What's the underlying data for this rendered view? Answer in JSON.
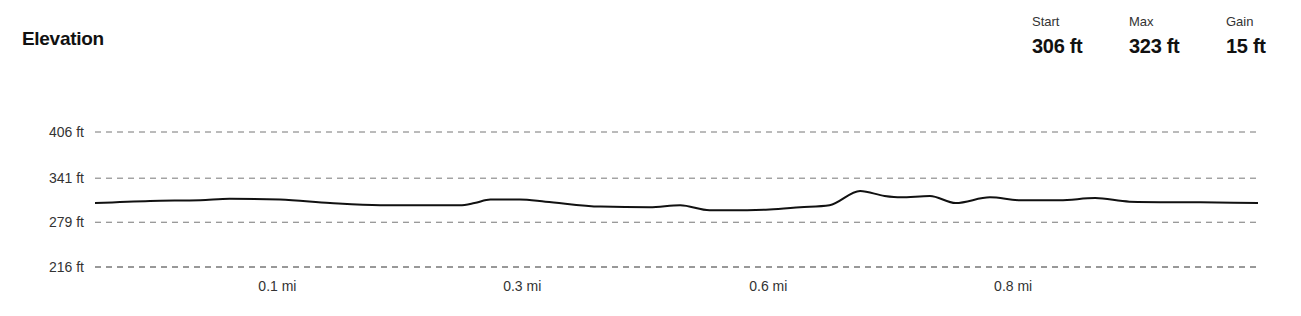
{
  "stats": [
    {
      "label": "Start",
      "value": "306 ft"
    },
    {
      "label": "Max",
      "value": "323 ft"
    },
    {
      "label": "Gain",
      "value": "15 ft"
    }
  ],
  "chart_data": {
    "type": "line",
    "title": "Elevation",
    "x": [
      0,
      0.045,
      0.086,
      0.11,
      0.151,
      0.192,
      0.233,
      0.266,
      0.298,
      0.31,
      0.323,
      0.347,
      0.368,
      0.413,
      0.453,
      0.478,
      0.502,
      0.519,
      0.551,
      0.576,
      0.6,
      0.625,
      0.645,
      0.658,
      0.682,
      0.703,
      0.731,
      0.756,
      0.788,
      0.817,
      0.845,
      0.903,
      0.95
    ],
    "values": [
      306,
      309,
      310,
      312,
      311,
      306,
      303,
      303,
      303,
      306,
      311,
      311,
      308,
      301,
      300,
      303,
      296,
      296,
      297,
      300,
      303,
      323,
      316,
      314,
      316,
      306,
      314,
      310,
      310,
      313,
      308,
      307,
      306
    ],
    "color": "#111111",
    "xlim": [
      0,
      0.95
    ],
    "xticks": [
      {
        "value": 0.149,
        "label": "0.1 mi"
      },
      {
        "value": 0.349,
        "label": "0.3 mi"
      },
      {
        "value": 0.55,
        "label": "0.6 mi"
      },
      {
        "value": 0.75,
        "label": "0.8 mi"
      }
    ],
    "ylim": [
      216,
      406
    ],
    "yticks": [
      {
        "value": 216,
        "label": "216 ft"
      },
      {
        "value": 279,
        "label": "279 ft"
      },
      {
        "value": 341,
        "label": "341 ft"
      },
      {
        "value": 406,
        "label": "406 ft"
      }
    ],
    "grid": true
  }
}
